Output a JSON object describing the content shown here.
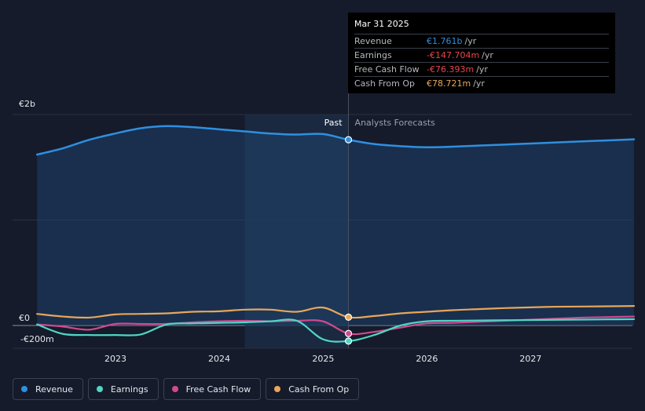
{
  "chart_data": {
    "type": "line",
    "y_ticks": [
      "€2b",
      "€0",
      "-€200m"
    ],
    "x_ticks": [
      "2023",
      "2024",
      "2025",
      "2026",
      "2027"
    ],
    "ylim": [
      -200,
      2000
    ],
    "divider_label_past": "Past",
    "divider_label_forecast": "Analysts Forecasts",
    "series": [
      {
        "name": "Revenue",
        "color": "#2f8fe0",
        "x": [
          "2022-03-31",
          "2022-06-30",
          "2022-09-30",
          "2022-12-31",
          "2023-03-31",
          "2023-06-30",
          "2023-09-30",
          "2023-12-31",
          "2024-03-31",
          "2024-06-30",
          "2024-09-30",
          "2024-12-31",
          "2025-03-31",
          "2025-06-30",
          "2025-09-30",
          "2025-12-31",
          "2026-03-31",
          "2026-06-30",
          "2026-09-30",
          "2026-12-31",
          "2027-03-31",
          "2027-06-30",
          "2027-09-30",
          "2027-12-31"
        ],
        "values": [
          1620,
          1680,
          1760,
          1820,
          1870,
          1890,
          1880,
          1860,
          1840,
          1820,
          1810,
          1815,
          1761,
          1720,
          1700,
          1690,
          1695,
          1705,
          1715,
          1725,
          1735,
          1745,
          1755,
          1765
        ]
      },
      {
        "name": "Earnings",
        "color": "#4fd6c4",
        "x": [
          "2022-03-31",
          "2022-06-30",
          "2022-09-30",
          "2022-12-31",
          "2023-03-31",
          "2023-06-30",
          "2023-09-30",
          "2023-12-31",
          "2024-03-31",
          "2024-06-30",
          "2024-09-30",
          "2024-12-31",
          "2025-03-31",
          "2025-06-30",
          "2025-09-30",
          "2025-12-31",
          "2026-03-31",
          "2026-06-30",
          "2026-09-30",
          "2026-12-31",
          "2027-03-31",
          "2027-06-30",
          "2027-09-30",
          "2027-12-31"
        ],
        "values": [
          10,
          -80,
          -90,
          -90,
          -85,
          10,
          20,
          25,
          30,
          40,
          45,
          -130,
          -147.704,
          -90,
          0,
          40,
          45,
          48,
          50,
          52,
          54,
          56,
          58,
          60
        ]
      },
      {
        "name": "Free Cash Flow",
        "color": "#d04a8f",
        "x": [
          "2022-03-31",
          "2022-06-30",
          "2022-09-30",
          "2022-12-31",
          "2023-03-31",
          "2023-06-30",
          "2023-09-30",
          "2023-12-31",
          "2024-03-31",
          "2024-06-30",
          "2024-09-30",
          "2024-12-31",
          "2025-03-31",
          "2025-06-30",
          "2025-09-30",
          "2025-12-31",
          "2026-03-31",
          "2026-06-30",
          "2026-09-30",
          "2026-12-31",
          "2027-03-31",
          "2027-06-30",
          "2027-09-30",
          "2027-12-31"
        ],
        "values": [
          10,
          -10,
          -40,
          15,
          15,
          15,
          30,
          40,
          45,
          40,
          45,
          40,
          -76.393,
          -60,
          -20,
          20,
          25,
          35,
          45,
          55,
          65,
          75,
          80,
          85
        ]
      },
      {
        "name": "Cash From Op",
        "color": "#e8a65a",
        "x": [
          "2022-03-31",
          "2022-06-30",
          "2022-09-30",
          "2022-12-31",
          "2023-03-31",
          "2023-06-30",
          "2023-09-30",
          "2023-12-31",
          "2024-03-31",
          "2024-06-30",
          "2024-09-30",
          "2024-12-31",
          "2025-03-31",
          "2025-06-30",
          "2025-09-30",
          "2025-12-31",
          "2026-03-31",
          "2026-06-30",
          "2026-09-30",
          "2026-12-31",
          "2027-03-31",
          "2027-06-30",
          "2027-09-30",
          "2027-12-31"
        ],
        "values": [
          110,
          85,
          75,
          105,
          110,
          115,
          130,
          135,
          150,
          150,
          130,
          170,
          78.721,
          90,
          115,
          130,
          145,
          155,
          165,
          172,
          178,
          180,
          182,
          185
        ]
      }
    ]
  },
  "tooltip": {
    "date": "Mar 31 2025",
    "rows": [
      {
        "label": "Revenue",
        "value": "€1.761b",
        "unit": "/yr",
        "color": "#2f8fe0"
      },
      {
        "label": "Earnings",
        "value": "-€147.704m",
        "unit": "/yr",
        "color": "#e8454a"
      },
      {
        "label": "Free Cash Flow",
        "value": "-€76.393m",
        "unit": "/yr",
        "color": "#e8454a"
      },
      {
        "label": "Cash From Op",
        "value": "€78.721m",
        "unit": "/yr",
        "color": "#e8a65a"
      }
    ]
  },
  "legend": [
    {
      "label": "Revenue",
      "color": "#2f8fe0"
    },
    {
      "label": "Earnings",
      "color": "#4fd6c4"
    },
    {
      "label": "Free Cash Flow",
      "color": "#d04a8f"
    },
    {
      "label": "Cash From Op",
      "color": "#e8a65a"
    }
  ]
}
